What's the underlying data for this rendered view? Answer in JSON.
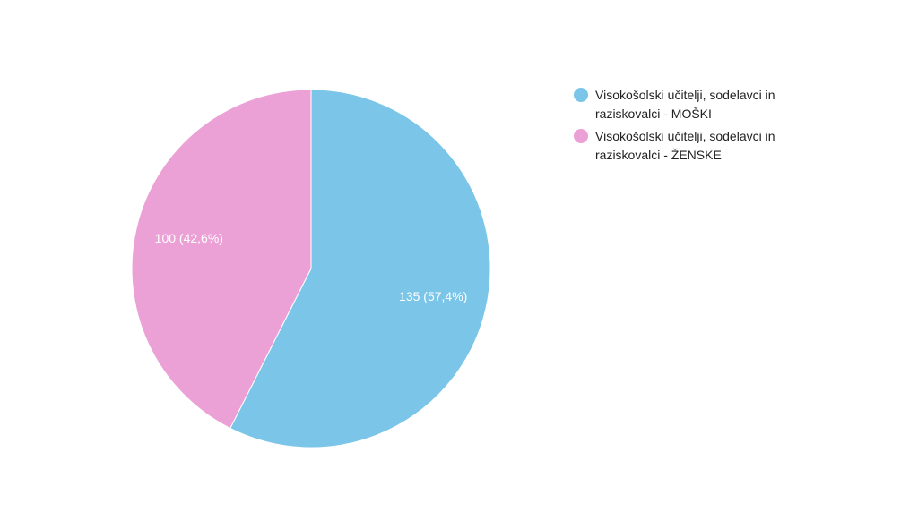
{
  "chart_data": {
    "type": "pie",
    "categories": [
      "Visokošolski učitelji, sodelavci in raziskovalci - MOŠKI",
      "Visokošolski učitelji, sodelavci in raziskovalci - ŽENSKE"
    ],
    "values": [
      135,
      100
    ],
    "value_labels": [
      "135 (57,4%)",
      "100 (42,6%)"
    ],
    "colors": [
      "#7ac5e8",
      "#eca1d6"
    ]
  }
}
